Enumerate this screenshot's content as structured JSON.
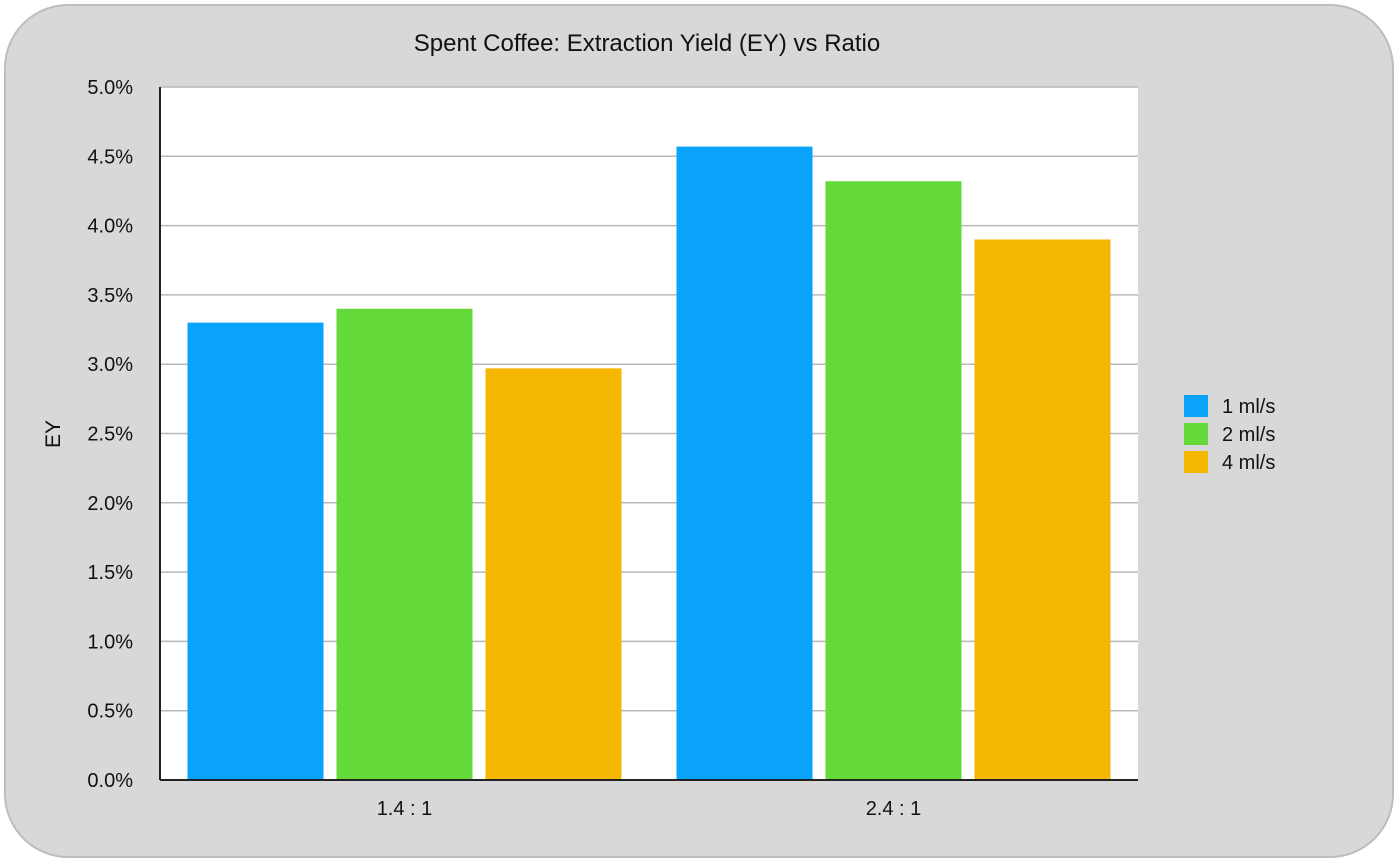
{
  "chart_data": {
    "type": "bar",
    "title": "Spent Coffee: Extraction Yield (EY) vs Ratio",
    "xlabel": "",
    "ylabel": "EY",
    "categories": [
      "1.4 : 1",
      "2.4 : 1"
    ],
    "series": [
      {
        "name": "1 ml/s",
        "color": "#0aa3fa",
        "values": [
          3.3,
          4.57
        ]
      },
      {
        "name": "2 ml/s",
        "color": "#63d93a",
        "values": [
          3.4,
          4.32
        ]
      },
      {
        "name": "4 ml/s",
        "color": "#f5b700",
        "values": [
          2.97,
          3.9
        ]
      }
    ],
    "ylim": [
      0,
      5
    ],
    "yticks": [
      "0.0%",
      "0.5%",
      "1.0%",
      "1.5%",
      "2.0%",
      "2.5%",
      "3.0%",
      "3.5%",
      "4.0%",
      "4.5%",
      "5.0%"
    ],
    "grid": true,
    "legend_position": "right"
  }
}
